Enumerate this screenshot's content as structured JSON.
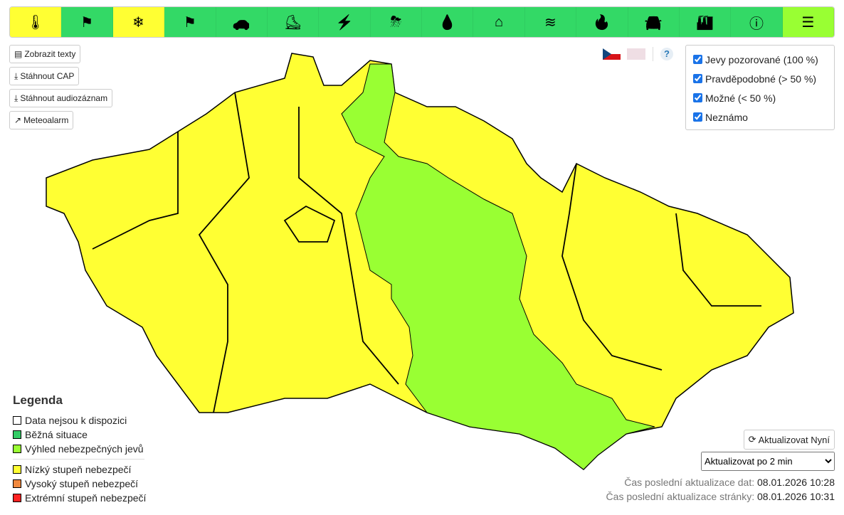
{
  "toolbar": [
    {
      "icon": "thermometer-icon",
      "glyph": "🌡",
      "color": "#ffff33"
    },
    {
      "icon": "wind-flag-icon",
      "glyph": "⚑",
      "color": "#33d966"
    },
    {
      "icon": "snow-icon",
      "glyph": "❄",
      "color": "#ffff33"
    },
    {
      "icon": "snow-wind-icon",
      "glyph": "⚑",
      "color": "#33d966"
    },
    {
      "icon": "slippery-road-icon",
      "glyph": "🚗",
      "color": "#33d966"
    },
    {
      "icon": "ice-slip-icon",
      "glyph": "⛸",
      "color": "#33d966"
    },
    {
      "icon": "icing-powerline-icon",
      "glyph": "⚡",
      "color": "#33d966"
    },
    {
      "icon": "thunderstorm-icon",
      "glyph": "⛈",
      "color": "#33d966"
    },
    {
      "icon": "rain-icon",
      "glyph": "💧",
      "color": "#33d966"
    },
    {
      "icon": "flood-house-icon",
      "glyph": "⌂",
      "color": "#33d966"
    },
    {
      "icon": "flood-water-icon",
      "glyph": "≋",
      "color": "#33d966"
    },
    {
      "icon": "fire-icon",
      "glyph": "🔥",
      "color": "#33d966"
    },
    {
      "icon": "ozone-car-icon",
      "glyph": "🚘",
      "color": "#33d966"
    },
    {
      "icon": "smog-factory-icon",
      "glyph": "🏭",
      "color": "#33d966"
    },
    {
      "icon": "warning-icon",
      "glyph": "ⓘ",
      "color": "#33d966"
    },
    {
      "icon": "notes-icon",
      "glyph": "☰",
      "color": "#99ff33"
    }
  ],
  "buttons": {
    "texts": "Zobrazit texty",
    "cap": "Stáhnout CAP",
    "audio": "Stáhnout audiozáznam",
    "meteoalarm": "Meteoalarm"
  },
  "legend": {
    "title": "Legenda",
    "items": [
      {
        "label": "Data nejsou k dispozici",
        "color": "#ffffff"
      },
      {
        "label": "Běžná situace",
        "color": "#33cc66"
      },
      {
        "label": "Výhled nebezpečných jevů",
        "color": "#99ff33"
      },
      {
        "label": "Nízký stupeň nebezpečí",
        "color": "#ffff33"
      },
      {
        "label": "Vysoký stupeň nebezpečí",
        "color": "#f0883e"
      },
      {
        "label": "Extrémní stupeň nebezpečí",
        "color": "#ff2222"
      }
    ]
  },
  "filters": [
    {
      "label": "Jevy pozorované (100 %)",
      "checked": true
    },
    {
      "label": "Pravděpodobné (> 50 %)",
      "checked": true
    },
    {
      "label": "Možné (< 50 %)",
      "checked": true
    },
    {
      "label": "Neznámo",
      "checked": true
    }
  ],
  "refresh": {
    "now": "Aktualizovat Nyní",
    "interval": "Aktualizovat po 2 min"
  },
  "status": {
    "data_label": "Čas poslední aktualizace dat:",
    "data_time": "08.01.2026 10:28",
    "page_label": "Čas poslední aktualizace stránky:",
    "page_time": "08.01.2026 10:31"
  },
  "help": "?"
}
